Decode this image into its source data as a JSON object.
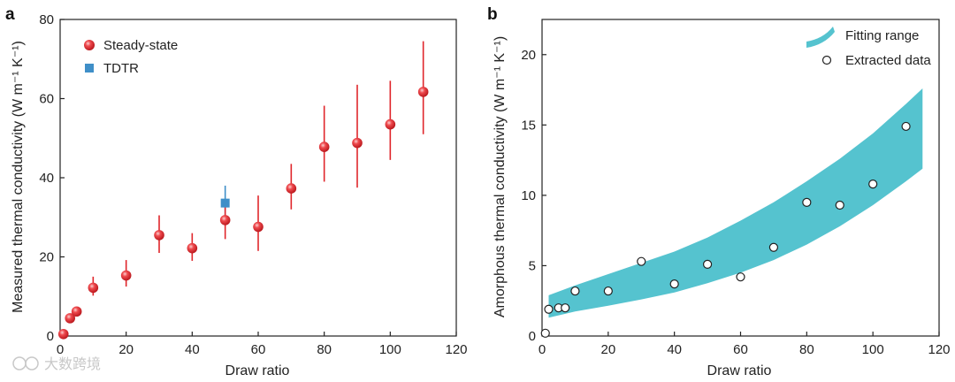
{
  "watermark": "大数跨境",
  "colors": {
    "steady": "#e0262b",
    "steady_highlight": "#f7a3a3",
    "tdtr": "#3f8fc8",
    "band": "#55c3cf",
    "axis": "#222222"
  },
  "chart_data": [
    {
      "panel": "a",
      "type": "scatter",
      "xlabel": "Draw ratio",
      "ylabel": "Measured thermal conductivity (W m⁻¹ K⁻¹)",
      "xlim": [
        0,
        120
      ],
      "ylim": [
        0,
        80
      ],
      "xticks": [
        0,
        20,
        40,
        60,
        80,
        100,
        120
      ],
      "yticks": [
        0,
        20,
        40,
        60,
        80
      ],
      "legend_position": "top-left",
      "series": [
        {
          "name": "Steady-state",
          "points": [
            {
              "x": 1,
              "y": 0.5,
              "lo": 0.5,
              "hi": 0.5
            },
            {
              "x": 3,
              "y": 4.5,
              "lo": 4.5,
              "hi": 4.5
            },
            {
              "x": 5,
              "y": 6.2,
              "lo": 6.2,
              "hi": 6.2
            },
            {
              "x": 10,
              "y": 12.2,
              "lo": 10.2,
              "hi": 15.0
            },
            {
              "x": 20,
              "y": 15.3,
              "lo": 12.5,
              "hi": 19.2
            },
            {
              "x": 30,
              "y": 25.5,
              "lo": 21.0,
              "hi": 30.5
            },
            {
              "x": 40,
              "y": 22.2,
              "lo": 19.0,
              "hi": 26.0
            },
            {
              "x": 50,
              "y": 29.3,
              "lo": 24.5,
              "hi": 34.5
            },
            {
              "x": 60,
              "y": 27.6,
              "lo": 21.5,
              "hi": 35.5
            },
            {
              "x": 70,
              "y": 37.3,
              "lo": 32.0,
              "hi": 43.5
            },
            {
              "x": 80,
              "y": 47.8,
              "lo": 39.0,
              "hi": 58.2
            },
            {
              "x": 90,
              "y": 48.8,
              "lo": 37.5,
              "hi": 63.5
            },
            {
              "x": 100,
              "y": 53.5,
              "lo": 44.5,
              "hi": 64.5
            },
            {
              "x": 110,
              "y": 61.7,
              "lo": 51.0,
              "hi": 74.5
            }
          ]
        },
        {
          "name": "TDTR",
          "points": [
            {
              "x": 50,
              "y": 33.6,
              "lo": 30.0,
              "hi": 38.0
            }
          ]
        }
      ]
    },
    {
      "panel": "b",
      "type": "scatter",
      "xlabel": "Draw ratio",
      "ylabel": "Amorphous thermal conductivity (W m⁻¹ K⁻¹)",
      "xlim": [
        0,
        120
      ],
      "ylim": [
        0,
        22.5
      ],
      "xticks": [
        0,
        20,
        40,
        60,
        80,
        100,
        120
      ],
      "yticks": [
        0,
        5,
        10,
        15,
        20
      ],
      "legend_position": "top-right",
      "band": {
        "name": "Fitting range",
        "x": [
          2,
          10,
          20,
          30,
          40,
          50,
          60,
          70,
          80,
          90,
          100,
          110,
          115
        ],
        "lower": [
          1.3,
          1.75,
          2.15,
          2.6,
          3.1,
          3.75,
          4.5,
          5.4,
          6.5,
          7.8,
          9.3,
          11.0,
          11.9
        ],
        "upper": [
          2.9,
          3.6,
          4.4,
          5.2,
          6.0,
          7.0,
          8.2,
          9.5,
          11.0,
          12.6,
          14.4,
          16.5,
          17.6
        ]
      },
      "series": [
        {
          "name": "Extracted data",
          "points": [
            {
              "x": 1,
              "y": 0.2
            },
            {
              "x": 2,
              "y": 1.9
            },
            {
              "x": 5,
              "y": 2.0
            },
            {
              "x": 7,
              "y": 2.0
            },
            {
              "x": 10,
              "y": 3.2
            },
            {
              "x": 20,
              "y": 3.2
            },
            {
              "x": 30,
              "y": 5.3
            },
            {
              "x": 40,
              "y": 3.7
            },
            {
              "x": 50,
              "y": 5.1
            },
            {
              "x": 60,
              "y": 4.2
            },
            {
              "x": 70,
              "y": 6.3
            },
            {
              "x": 80,
              "y": 9.5
            },
            {
              "x": 90,
              "y": 9.3
            },
            {
              "x": 100,
              "y": 10.8
            },
            {
              "x": 110,
              "y": 14.9
            }
          ]
        }
      ]
    }
  ]
}
